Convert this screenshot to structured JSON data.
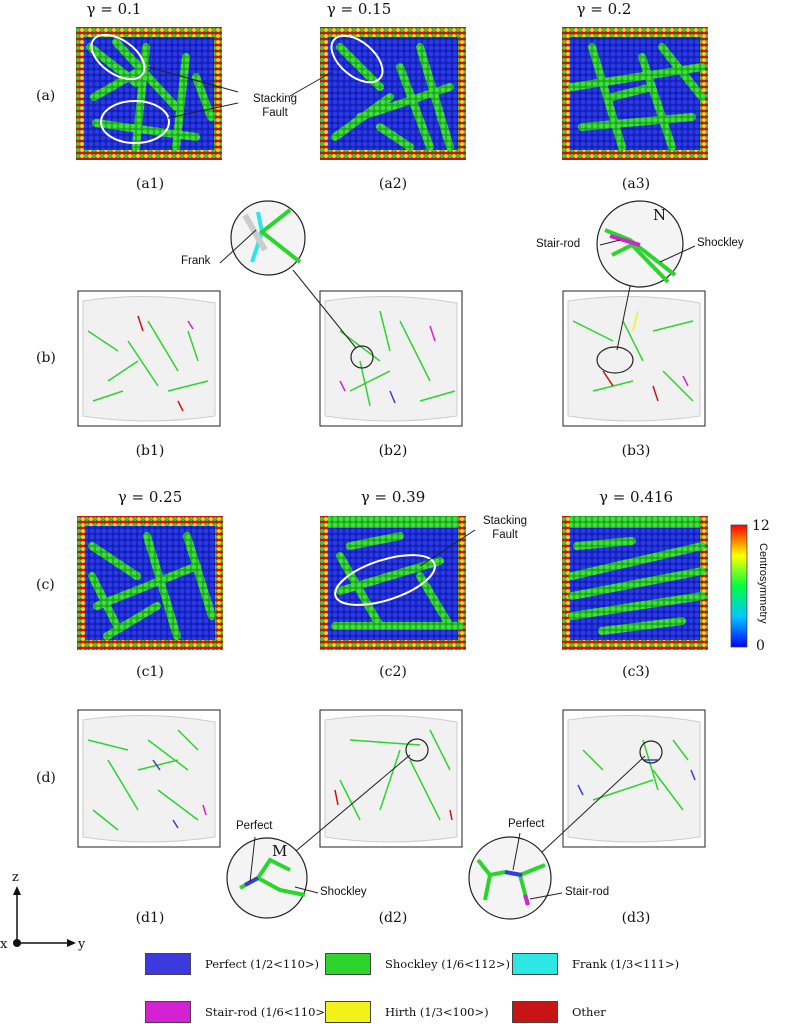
{
  "colors": {
    "perfect": "#3a3adf",
    "shockley": "#2ed42e",
    "frank": "#2de6e6",
    "stair_rod": "#d421d4",
    "hirth": "#f2f21a",
    "other": "#c81414"
  },
  "row_a": {
    "label": "(a)",
    "gammas": [
      "γ = 0.1",
      "γ = 0.15",
      "γ = 0.2"
    ],
    "subs": [
      "(a1)",
      "(a2)",
      "(a3)"
    ],
    "annotation": "Stacking\nFault"
  },
  "row_b": {
    "label": "(b)",
    "subs": [
      "(b1)",
      "(b2)",
      "(b3)"
    ],
    "frank_label": "Frank",
    "stair_rod_label": "Stair-rod",
    "shockley_label": "Shockley",
    "zoom_letter": "N"
  },
  "row_c": {
    "label": "(c)",
    "gammas": [
      "γ = 0.25",
      "γ = 0.39",
      "γ = 0.416"
    ],
    "subs": [
      "(c1)",
      "(c2)",
      "(c3)"
    ],
    "annotation": "Stacking\nFault"
  },
  "row_d": {
    "label": "(d)",
    "subs": [
      "(d1)",
      "(d2)",
      "(d3)"
    ],
    "perfect_label": "Perfect",
    "shockley_label": "Shockley",
    "zoom_letter": "M",
    "perfect_label_2": "Perfect",
    "stair_rod_label": "Stair-rod"
  },
  "colorbar": {
    "title": "Centrosymmetry",
    "max": "12",
    "min": "0"
  },
  "axes": {
    "z": "z",
    "x": "x",
    "y": "y"
  },
  "legend": [
    {
      "label": "Perfect (1/2<110>)",
      "color": "#3a3adf"
    },
    {
      "label": "Shockley (1/6<112>)",
      "color": "#2ed42e"
    },
    {
      "label": "Frank (1/3<111>)",
      "color": "#2de6e6"
    },
    {
      "label": "Stair-rod (1/6<110>)",
      "color": "#d421d4"
    },
    {
      "label": "Hirth (1/3<100>)",
      "color": "#f2f21a"
    },
    {
      "label": "Other",
      "color": "#c81414"
    }
  ]
}
